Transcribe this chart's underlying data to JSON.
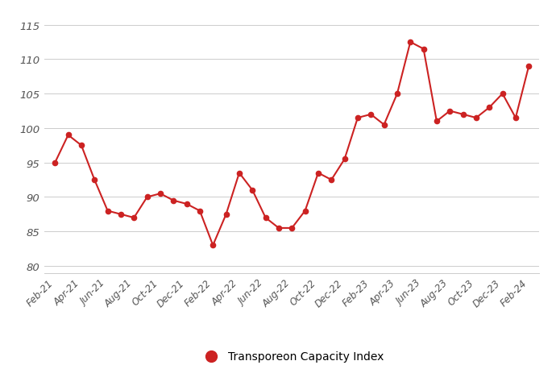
{
  "x_ticks_labels": [
    "Feb-21",
    "Apr-21",
    "Jun-21",
    "Aug-21",
    "Oct-21",
    "Dec-21",
    "Feb-22",
    "Apr-22",
    "Jun-22",
    "Aug-22",
    "Oct-22",
    "Dec-22",
    "Feb-23",
    "Apr-23",
    "Jun-23",
    "Aug-23",
    "Oct-23",
    "Dec-23",
    "Feb-24"
  ],
  "y_vals": [
    95.0,
    99.0,
    97.5,
    92.5,
    88.0,
    87.5,
    87.0,
    90.0,
    90.5,
    89.5,
    89.0,
    88.0,
    83.0,
    87.5,
    93.5,
    91.0,
    87.0,
    85.5,
    85.5,
    88.0,
    93.5,
    92.5,
    95.5,
    101.5,
    102.0,
    100.5,
    105.0,
    112.5,
    111.5,
    101.0,
    102.5,
    102.0,
    101.5,
    103.0,
    105.0,
    101.5,
    109.0
  ],
  "line_color": "#CC2222",
  "marker_color": "#CC2222",
  "background_color": "#FFFFFF",
  "grid_color": "#CCCCCC",
  "ylim": [
    79,
    117
  ],
  "yticks": [
    80,
    85,
    90,
    95,
    100,
    105,
    110,
    115
  ],
  "legend_label": "Transporeon Capacity Index",
  "tick_fontsize": 8.5,
  "ytick_fontsize": 9.5,
  "legend_fontsize": 10,
  "tick_color": "#555555"
}
